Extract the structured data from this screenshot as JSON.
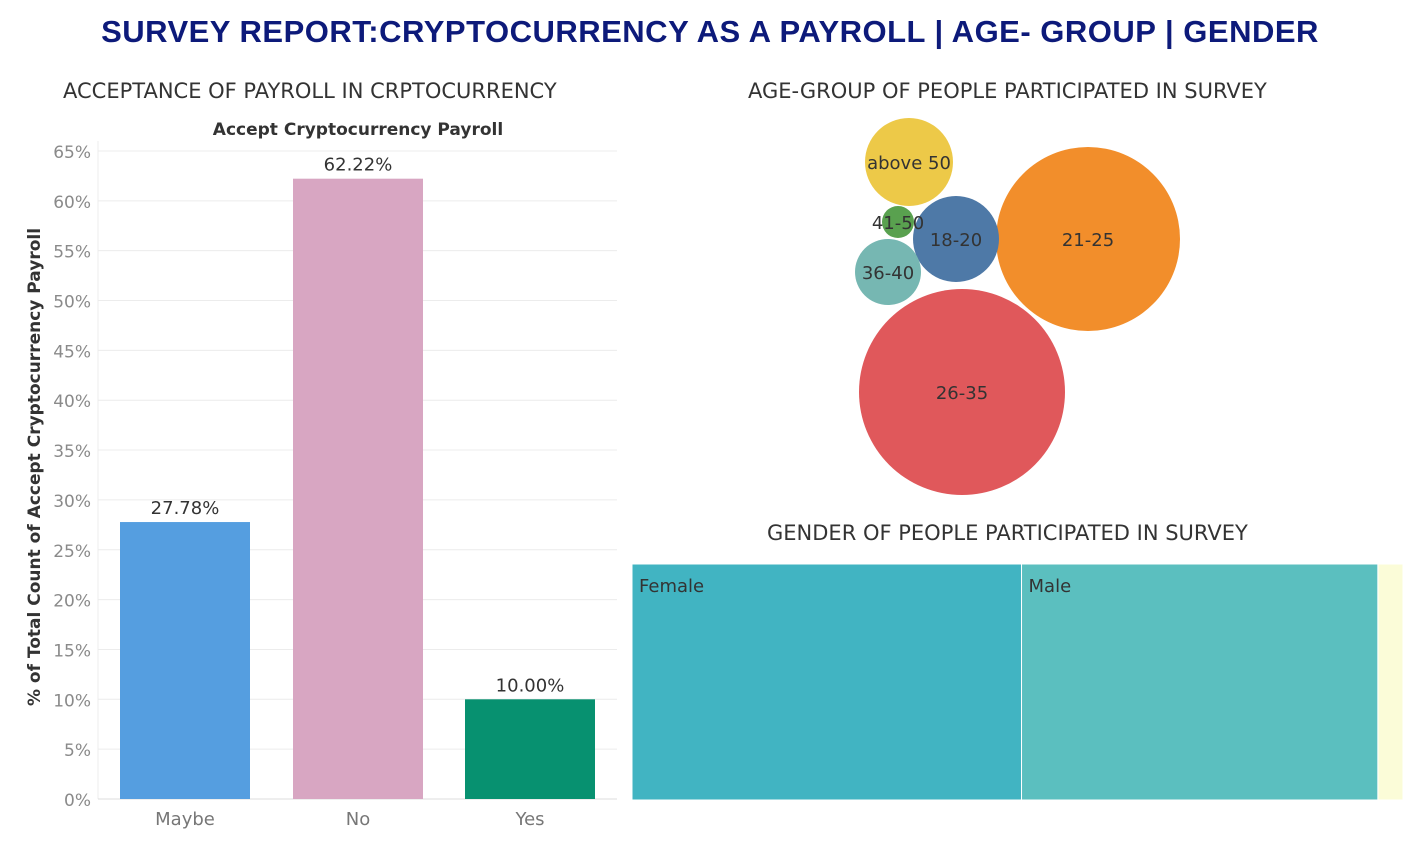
{
  "title": "SURVEY REPORT:CRYPTOCURRENCY AS A PAYROLL | AGE- GROUP | GENDER",
  "bar_section_title": "ACCEPTANCE OF PAYROLL IN CRPTOCURRENCY",
  "bubble_section_title": "AGE-GROUP OF PEOPLE PARTICIPATED IN SURVEY",
  "treemap_section_title": "GENDER OF PEOPLE PARTICIPATED IN SURVEY",
  "chart_data": [
    {
      "type": "bar",
      "title": "Accept Cryptocurrency Payroll",
      "ylabel": "% of Total Count of Accept Cryptocurrency Payroll",
      "categories": [
        "Maybe",
        "No",
        "Yes"
      ],
      "values": [
        27.78,
        62.22,
        10.0
      ],
      "value_labels": [
        "27.78%",
        "62.22%",
        "10.00%"
      ],
      "colors": [
        "#559ee0",
        "#d8a6c2",
        "#079170"
      ],
      "ylim": [
        0,
        66
      ],
      "yticks": [
        0,
        5,
        10,
        15,
        20,
        25,
        30,
        35,
        40,
        45,
        50,
        55,
        60,
        65
      ],
      "ytick_labels": [
        "0%",
        "5%",
        "10%",
        "15%",
        "20%",
        "25%",
        "30%",
        "35%",
        "40%",
        "45%",
        "50%",
        "55%",
        "60%",
        "65%"
      ],
      "grid": true
    },
    {
      "type": "bubble",
      "categories": [
        "26-35",
        "21-25",
        "18-20",
        "above 50",
        "36-40",
        "41-50"
      ],
      "colors": [
        "#e0585b",
        "#f28e2b",
        "#4e79a7",
        "#edc948",
        "#76b7b2",
        "#59a14f"
      ],
      "relative_size": [
        1.0,
        0.8,
        0.19,
        0.16,
        0.1,
        0.018
      ]
    },
    {
      "type": "treemap",
      "categories": [
        "Female",
        "Male",
        ""
      ],
      "values": [
        388,
        355,
        25
      ],
      "colors": [
        "#41b4c2",
        "#5bbfbf",
        "#fbfcd8"
      ]
    }
  ]
}
